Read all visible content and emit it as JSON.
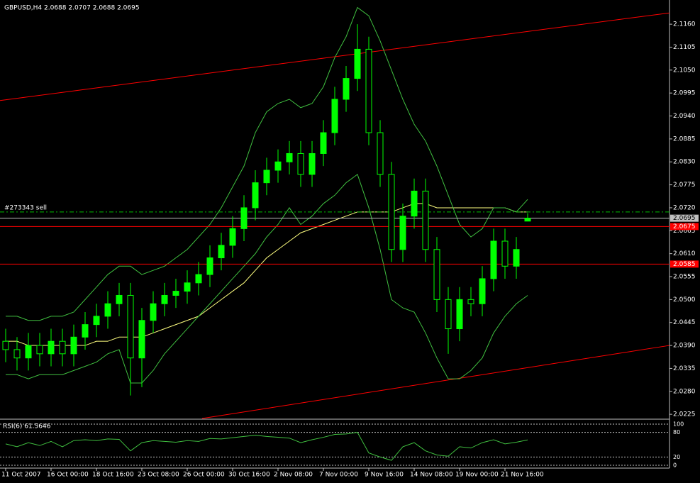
{
  "chart_data": {
    "type": "candlestick",
    "title": "GBPUSD,H4  2.0688 2.0707 2.0688 2.0695",
    "categories": [
      "11 Oct 2007",
      null,
      null,
      null,
      "16 Oct 00:00",
      null,
      null,
      null,
      "18 Oct 16:00",
      null,
      null,
      null,
      "23 Oct 08:00",
      null,
      null,
      null,
      "26 Oct 00:00",
      null,
      null,
      null,
      "30 Oct 16:00",
      null,
      null,
      null,
      "2 Nov 08:00",
      null,
      null,
      null,
      "7 Nov 00:00",
      null,
      null,
      null,
      "9 Nov 16:00",
      null,
      null,
      null,
      "14 Nov 08:00",
      null,
      null,
      null,
      "19 Nov 00:00",
      null,
      null,
      null,
      "21 Nov 16:00",
      null,
      null
    ],
    "open": [
      2.04,
      2.038,
      2.036,
      2.039,
      2.037,
      2.04,
      2.037,
      2.041,
      2.044,
      2.046,
      2.049,
      2.051,
      2.036,
      2.045,
      2.049,
      2.051,
      2.052,
      2.054,
      2.056,
      2.06,
      2.063,
      2.067,
      2.072,
      2.078,
      2.081,
      2.083,
      2.085,
      2.08,
      2.085,
      2.09,
      2.098,
      2.103,
      2.11,
      2.09,
      2.08,
      2.062,
      2.07,
      2.076,
      2.062,
      2.05,
      2.043,
      2.05,
      2.049,
      2.055,
      2.064,
      2.058,
      2.0688
    ],
    "high": [
      2.043,
      2.041,
      2.042,
      2.042,
      2.043,
      2.043,
      2.044,
      2.047,
      2.049,
      2.052,
      2.054,
      2.054,
      2.048,
      2.052,
      2.054,
      2.055,
      2.057,
      2.059,
      2.063,
      2.066,
      2.07,
      2.075,
      2.081,
      2.084,
      2.086,
      2.088,
      2.088,
      2.088,
      2.093,
      2.101,
      2.106,
      2.116,
      2.113,
      2.093,
      2.083,
      2.073,
      2.079,
      2.079,
      2.065,
      2.053,
      2.053,
      2.053,
      2.058,
      2.067,
      2.067,
      2.065,
      2.0707
    ],
    "low": [
      2.035,
      2.033,
      2.033,
      2.034,
      2.034,
      2.034,
      2.034,
      2.038,
      2.041,
      2.043,
      2.046,
      2.027,
      2.029,
      2.042,
      2.046,
      2.048,
      2.049,
      2.051,
      2.053,
      2.057,
      2.06,
      2.064,
      2.069,
      2.075,
      2.078,
      2.08,
      2.077,
      2.077,
      2.082,
      2.087,
      2.095,
      2.1,
      2.087,
      2.077,
      2.059,
      2.059,
      2.067,
      2.059,
      2.047,
      2.037,
      2.04,
      2.046,
      2.046,
      2.052,
      2.055,
      2.055,
      2.0688
    ],
    "close": [
      2.038,
      2.036,
      2.039,
      2.037,
      2.04,
      2.037,
      2.041,
      2.044,
      2.046,
      2.049,
      2.051,
      2.036,
      2.045,
      2.049,
      2.051,
      2.052,
      2.054,
      2.056,
      2.06,
      2.063,
      2.067,
      2.072,
      2.078,
      2.081,
      2.083,
      2.085,
      2.08,
      2.085,
      2.09,
      2.098,
      2.103,
      2.11,
      2.09,
      2.08,
      2.062,
      2.07,
      2.076,
      2.062,
      2.05,
      2.043,
      2.05,
      2.049,
      2.055,
      2.064,
      2.058,
      2.062,
      2.0695
    ],
    "color": "#00ff00",
    "down_fill": "#000000",
    "ylim": [
      2.0215,
      2.1218
    ],
    "yticks": [
      {
        "value": 2.116,
        "label": "2.1160"
      },
      {
        "value": 2.1105,
        "label": "2.1105"
      },
      {
        "value": 2.105,
        "label": "2.1050"
      },
      {
        "value": 2.0995,
        "label": "2.0995"
      },
      {
        "value": 2.094,
        "label": "2.0940"
      },
      {
        "value": 2.0885,
        "label": "2.0885"
      },
      {
        "value": 2.083,
        "label": "2.0830"
      },
      {
        "value": 2.0775,
        "label": "2.0775"
      },
      {
        "value": 2.072,
        "label": "2.0720"
      },
      {
        "value": 2.0665,
        "label": "2.0665"
      },
      {
        "value": 2.061,
        "label": "2.0610"
      },
      {
        "value": 2.0555,
        "label": "2.0555"
      },
      {
        "value": 2.05,
        "label": "2.0500"
      },
      {
        "value": 2.0445,
        "label": "2.0445"
      },
      {
        "value": 2.039,
        "label": "2.0390"
      },
      {
        "value": 2.0335,
        "label": "2.0335"
      },
      {
        "value": 2.028,
        "label": "2.0280"
      },
      {
        "value": 2.0225,
        "label": "2.0225"
      }
    ],
    "levels": [
      {
        "value": 2.071,
        "label": "#273343 sell",
        "color": "#00c000"
      },
      {
        "value": 2.0695,
        "label": "2.0695",
        "color": "#c0c0c0"
      },
      {
        "value": 2.0675,
        "label": "2.0675",
        "color": "#ff0000"
      },
      {
        "value": 2.0585,
        "label": "2.0585",
        "color": "#ff0000"
      }
    ],
    "overlays": [
      {
        "color": "#ffff80",
        "values": [
          2.04,
          2.04,
          2.039,
          2.039,
          2.039,
          2.039,
          2.039,
          2.039,
          2.04,
          2.04,
          2.041,
          2.041,
          2.041,
          2.042,
          2.043,
          2.044,
          2.045,
          2.046,
          2.048,
          2.05,
          2.052,
          2.054,
          2.057,
          2.06,
          2.062,
          2.064,
          2.066,
          2.067,
          2.068,
          2.069,
          2.07,
          2.071,
          2.071,
          2.071,
          2.071,
          2.072,
          2.073,
          2.073,
          2.072,
          2.072,
          2.072,
          2.072,
          2.072,
          2.072,
          2.072,
          2.071,
          2.071
        ]
      },
      {
        "color": "#40c040",
        "values": [
          2.046,
          2.046,
          2.045,
          2.045,
          2.046,
          2.046,
          2.047,
          2.05,
          2.053,
          2.056,
          2.058,
          2.058,
          2.056,
          2.057,
          2.058,
          2.06,
          2.062,
          2.065,
          2.068,
          2.072,
          2.077,
          2.082,
          2.09,
          2.095,
          2.097,
          2.098,
          2.096,
          2.097,
          2.101,
          2.108,
          2.113,
          2.12,
          2.118,
          2.112,
          2.105,
          2.098,
          2.092,
          2.088,
          2.082,
          2.075,
          2.068,
          2.065,
          2.067,
          2.072,
          2.072,
          2.071,
          2.074
        ]
      },
      {
        "color": "#40c040",
        "values": [
          2.032,
          2.032,
          2.031,
          2.032,
          2.032,
          2.032,
          2.033,
          2.034,
          2.035,
          2.037,
          2.038,
          2.03,
          2.03,
          2.033,
          2.037,
          2.04,
          2.043,
          2.046,
          2.049,
          2.052,
          2.055,
          2.058,
          2.061,
          2.065,
          2.068,
          2.072,
          2.068,
          2.07,
          2.073,
          2.075,
          2.078,
          2.08,
          2.072,
          2.062,
          2.05,
          2.048,
          2.047,
          2.042,
          2.036,
          2.031,
          2.031,
          2.033,
          2.036,
          2.042,
          2.046,
          2.049,
          2.051
        ]
      }
    ],
    "trendlines": [
      {
        "color": "#ff0000",
        "x": [
          -0.5,
          58.5
        ],
        "y": [
          2.0977,
          2.1187
        ]
      },
      {
        "color": "#ff0000",
        "x": [
          17.31,
          58.5
        ],
        "y": [
          2.0215,
          2.039
        ]
      }
    ],
    "rsi": {
      "title": "RSI(6) 61.5646",
      "color": "#40c040",
      "ylim": [
        0,
        100
      ],
      "yticks": [
        100,
        80,
        20,
        0
      ],
      "values": [
        52,
        45,
        55,
        48,
        58,
        45,
        60,
        62,
        60,
        64,
        63,
        35,
        55,
        60,
        58,
        56,
        60,
        58,
        65,
        64,
        67,
        70,
        73,
        70,
        68,
        66,
        55,
        62,
        68,
        75,
        76,
        80,
        30,
        20,
        12,
        45,
        55,
        35,
        25,
        22,
        45,
        42,
        55,
        62,
        52,
        56,
        61.5646
      ]
    }
  }
}
